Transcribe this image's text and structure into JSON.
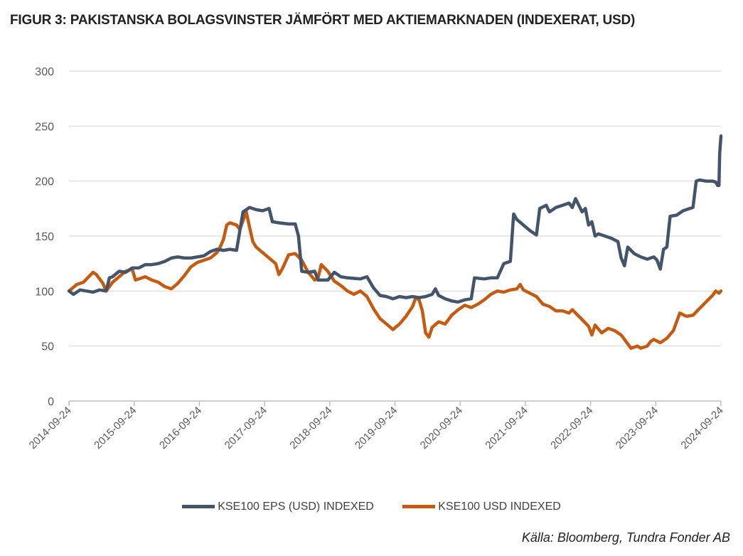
{
  "title": "FIGUR 3: PAKISTANSKA BOLAGSVINSTER JÄMFÖRT MED AKTIEMARKNADEN (INDEXERAT, USD)",
  "source": "Källa: Bloomberg, Tundra Fonder AB",
  "colors": {
    "eps": "#44546a",
    "index": "#c55a11",
    "grid": "#d9d9d9",
    "axis": "#bfbfbf"
  },
  "chart_data": {
    "type": "line",
    "title": "FIGUR 3: PAKISTANSKA BOLAGSVINSTER JÄMFÖRT MED AKTIEMARKNADEN (INDEXERAT, USD)",
    "xlabel": "",
    "ylabel": "",
    "ylim": [
      0,
      300
    ],
    "xlim": [
      2014.73,
      2024.73
    ],
    "y_ticks": [
      0,
      50,
      100,
      150,
      200,
      250,
      300
    ],
    "x_ticks": [
      {
        "x": 2014.73,
        "label": "2014-09-24"
      },
      {
        "x": 2015.73,
        "label": "2015-09-24"
      },
      {
        "x": 2016.73,
        "label": "2016-09-24"
      },
      {
        "x": 2017.73,
        "label": "2017-09-24"
      },
      {
        "x": 2018.73,
        "label": "2018-09-24"
      },
      {
        "x": 2019.73,
        "label": "2019-09-24"
      },
      {
        "x": 2020.73,
        "label": "2020-09-24"
      },
      {
        "x": 2021.73,
        "label": "2021-09-24"
      },
      {
        "x": 2022.73,
        "label": "2022-09-24"
      },
      {
        "x": 2023.73,
        "label": "2023-09-24"
      },
      {
        "x": 2024.73,
        "label": "2024-09-24"
      }
    ],
    "grid": true,
    "legend": "bottom",
    "series": [
      {
        "name": "KSE100 EPS (USD) INDEXED",
        "color": "#44546a",
        "points": [
          [
            2014.73,
            100
          ],
          [
            2014.8,
            97
          ],
          [
            2014.9,
            101
          ],
          [
            2015.0,
            100
          ],
          [
            2015.1,
            99
          ],
          [
            2015.2,
            101
          ],
          [
            2015.3,
            100
          ],
          [
            2015.35,
            112
          ],
          [
            2015.4,
            113
          ],
          [
            2015.5,
            118
          ],
          [
            2015.6,
            117
          ],
          [
            2015.7,
            121
          ],
          [
            2015.8,
            121
          ],
          [
            2015.9,
            124
          ],
          [
            2016.0,
            124
          ],
          [
            2016.1,
            125
          ],
          [
            2016.2,
            127
          ],
          [
            2016.3,
            130
          ],
          [
            2016.4,
            131
          ],
          [
            2016.5,
            130
          ],
          [
            2016.6,
            130
          ],
          [
            2016.7,
            131
          ],
          [
            2016.8,
            132
          ],
          [
            2016.9,
            136
          ],
          [
            2017.0,
            138
          ],
          [
            2017.1,
            137
          ],
          [
            2017.2,
            138
          ],
          [
            2017.3,
            137
          ],
          [
            2017.4,
            172
          ],
          [
            2017.5,
            176
          ],
          [
            2017.6,
            174
          ],
          [
            2017.7,
            173
          ],
          [
            2017.8,
            175
          ],
          [
            2017.85,
            163
          ],
          [
            2017.95,
            162
          ],
          [
            2018.1,
            161
          ],
          [
            2018.2,
            161
          ],
          [
            2018.25,
            150
          ],
          [
            2018.3,
            118
          ],
          [
            2018.4,
            117
          ],
          [
            2018.5,
            118
          ],
          [
            2018.55,
            110
          ],
          [
            2018.7,
            110
          ],
          [
            2018.8,
            117
          ],
          [
            2018.9,
            113
          ],
          [
            2019.0,
            112
          ],
          [
            2019.2,
            111
          ],
          [
            2019.3,
            113
          ],
          [
            2019.4,
            103
          ],
          [
            2019.5,
            96
          ],
          [
            2019.6,
            95
          ],
          [
            2019.7,
            93
          ],
          [
            2019.8,
            95
          ],
          [
            2019.9,
            94
          ],
          [
            2020.0,
            95
          ],
          [
            2020.1,
            94
          ],
          [
            2020.2,
            95
          ],
          [
            2020.3,
            97
          ],
          [
            2020.35,
            102
          ],
          [
            2020.4,
            96
          ],
          [
            2020.5,
            93
          ],
          [
            2020.6,
            91
          ],
          [
            2020.7,
            90
          ],
          [
            2020.8,
            92
          ],
          [
            2020.9,
            93
          ],
          [
            2020.95,
            112
          ],
          [
            2021.1,
            111
          ],
          [
            2021.2,
            112
          ],
          [
            2021.3,
            112
          ],
          [
            2021.4,
            125
          ],
          [
            2021.5,
            127
          ],
          [
            2021.55,
            170
          ],
          [
            2021.6,
            165
          ],
          [
            2021.7,
            160
          ],
          [
            2021.8,
            155
          ],
          [
            2021.9,
            151
          ],
          [
            2021.95,
            175
          ],
          [
            2022.05,
            178
          ],
          [
            2022.1,
            172
          ],
          [
            2022.2,
            176
          ],
          [
            2022.3,
            178
          ],
          [
            2022.4,
            180
          ],
          [
            2022.45,
            176
          ],
          [
            2022.5,
            184
          ],
          [
            2022.55,
            178
          ],
          [
            2022.6,
            172
          ],
          [
            2022.65,
            175
          ],
          [
            2022.7,
            160
          ],
          [
            2022.75,
            163
          ],
          [
            2022.8,
            150
          ],
          [
            2022.85,
            152
          ],
          [
            2022.95,
            150
          ],
          [
            2023.05,
            148
          ],
          [
            2023.15,
            145
          ],
          [
            2023.2,
            130
          ],
          [
            2023.25,
            123
          ],
          [
            2023.3,
            140
          ],
          [
            2023.4,
            134
          ],
          [
            2023.5,
            131
          ],
          [
            2023.6,
            129
          ],
          [
            2023.7,
            131
          ],
          [
            2023.75,
            128
          ],
          [
            2023.8,
            120
          ],
          [
            2023.85,
            138
          ],
          [
            2023.9,
            140
          ],
          [
            2023.95,
            168
          ],
          [
            2024.05,
            169
          ],
          [
            2024.15,
            173
          ],
          [
            2024.3,
            176
          ],
          [
            2024.35,
            200
          ],
          [
            2024.4,
            201
          ],
          [
            2024.5,
            200
          ],
          [
            2024.6,
            200
          ],
          [
            2024.65,
            199
          ],
          [
            2024.68,
            196
          ],
          [
            2024.7,
            196
          ],
          [
            2024.71,
            225
          ],
          [
            2024.73,
            241
          ]
        ]
      },
      {
        "name": "KSE100 USD INDEXED",
        "color": "#c55a11",
        "points": [
          [
            2014.73,
            100
          ],
          [
            2014.85,
            106
          ],
          [
            2014.95,
            108
          ],
          [
            2015.05,
            114
          ],
          [
            2015.1,
            117
          ],
          [
            2015.15,
            115
          ],
          [
            2015.25,
            107
          ],
          [
            2015.3,
            100
          ],
          [
            2015.4,
            108
          ],
          [
            2015.5,
            113
          ],
          [
            2015.6,
            118
          ],
          [
            2015.7,
            120
          ],
          [
            2015.75,
            110
          ],
          [
            2015.9,
            113
          ],
          [
            2016.0,
            110
          ],
          [
            2016.1,
            108
          ],
          [
            2016.2,
            104
          ],
          [
            2016.3,
            102
          ],
          [
            2016.4,
            107
          ],
          [
            2016.5,
            114
          ],
          [
            2016.6,
            122
          ],
          [
            2016.7,
            126
          ],
          [
            2016.8,
            128
          ],
          [
            2016.9,
            130
          ],
          [
            2017.0,
            135
          ],
          [
            2017.05,
            140
          ],
          [
            2017.1,
            147
          ],
          [
            2017.15,
            160
          ],
          [
            2017.2,
            162
          ],
          [
            2017.3,
            160
          ],
          [
            2017.35,
            156
          ],
          [
            2017.4,
            164
          ],
          [
            2017.45,
            172
          ],
          [
            2017.5,
            158
          ],
          [
            2017.55,
            145
          ],
          [
            2017.6,
            140
          ],
          [
            2017.7,
            135
          ],
          [
            2017.8,
            130
          ],
          [
            2017.9,
            125
          ],
          [
            2017.95,
            115
          ],
          [
            2018.0,
            120
          ],
          [
            2018.1,
            133
          ],
          [
            2018.2,
            134
          ],
          [
            2018.3,
            128
          ],
          [
            2018.4,
            117
          ],
          [
            2018.5,
            110
          ],
          [
            2018.55,
            112
          ],
          [
            2018.6,
            124
          ],
          [
            2018.7,
            118
          ],
          [
            2018.8,
            109
          ],
          [
            2018.9,
            105
          ],
          [
            2019.0,
            100
          ],
          [
            2019.1,
            97
          ],
          [
            2019.2,
            100
          ],
          [
            2019.3,
            95
          ],
          [
            2019.4,
            84
          ],
          [
            2019.5,
            75
          ],
          [
            2019.6,
            70
          ],
          [
            2019.7,
            65
          ],
          [
            2019.8,
            70
          ],
          [
            2019.9,
            77
          ],
          [
            2020.0,
            86
          ],
          [
            2020.05,
            94
          ],
          [
            2020.1,
            92
          ],
          [
            2020.15,
            82
          ],
          [
            2020.2,
            62
          ],
          [
            2020.25,
            58
          ],
          [
            2020.3,
            67
          ],
          [
            2020.4,
            72
          ],
          [
            2020.5,
            70
          ],
          [
            2020.6,
            78
          ],
          [
            2020.7,
            83
          ],
          [
            2020.8,
            87
          ],
          [
            2020.9,
            85
          ],
          [
            2021.0,
            88
          ],
          [
            2021.1,
            92
          ],
          [
            2021.2,
            97
          ],
          [
            2021.3,
            100
          ],
          [
            2021.4,
            99
          ],
          [
            2021.5,
            101
          ],
          [
            2021.6,
            102
          ],
          [
            2021.65,
            106
          ],
          [
            2021.7,
            101
          ],
          [
            2021.8,
            98
          ],
          [
            2021.9,
            95
          ],
          [
            2022.0,
            88
          ],
          [
            2022.1,
            86
          ],
          [
            2022.2,
            82
          ],
          [
            2022.3,
            82
          ],
          [
            2022.4,
            80
          ],
          [
            2022.45,
            83
          ],
          [
            2022.5,
            80
          ],
          [
            2022.6,
            74
          ],
          [
            2022.7,
            68
          ],
          [
            2022.75,
            60
          ],
          [
            2022.8,
            69
          ],
          [
            2022.9,
            62
          ],
          [
            2023.0,
            66
          ],
          [
            2023.1,
            64
          ],
          [
            2023.2,
            60
          ],
          [
            2023.3,
            52
          ],
          [
            2023.35,
            48
          ],
          [
            2023.45,
            50
          ],
          [
            2023.5,
            48
          ],
          [
            2023.6,
            50
          ],
          [
            2023.65,
            54
          ],
          [
            2023.7,
            56
          ],
          [
            2023.8,
            53
          ],
          [
            2023.9,
            57
          ],
          [
            2024.0,
            64
          ],
          [
            2024.05,
            72
          ],
          [
            2024.1,
            80
          ],
          [
            2024.2,
            77
          ],
          [
            2024.3,
            78
          ],
          [
            2024.4,
            84
          ],
          [
            2024.5,
            90
          ],
          [
            2024.6,
            96
          ],
          [
            2024.65,
            100
          ],
          [
            2024.7,
            98
          ],
          [
            2024.73,
            100
          ]
        ]
      }
    ]
  }
}
